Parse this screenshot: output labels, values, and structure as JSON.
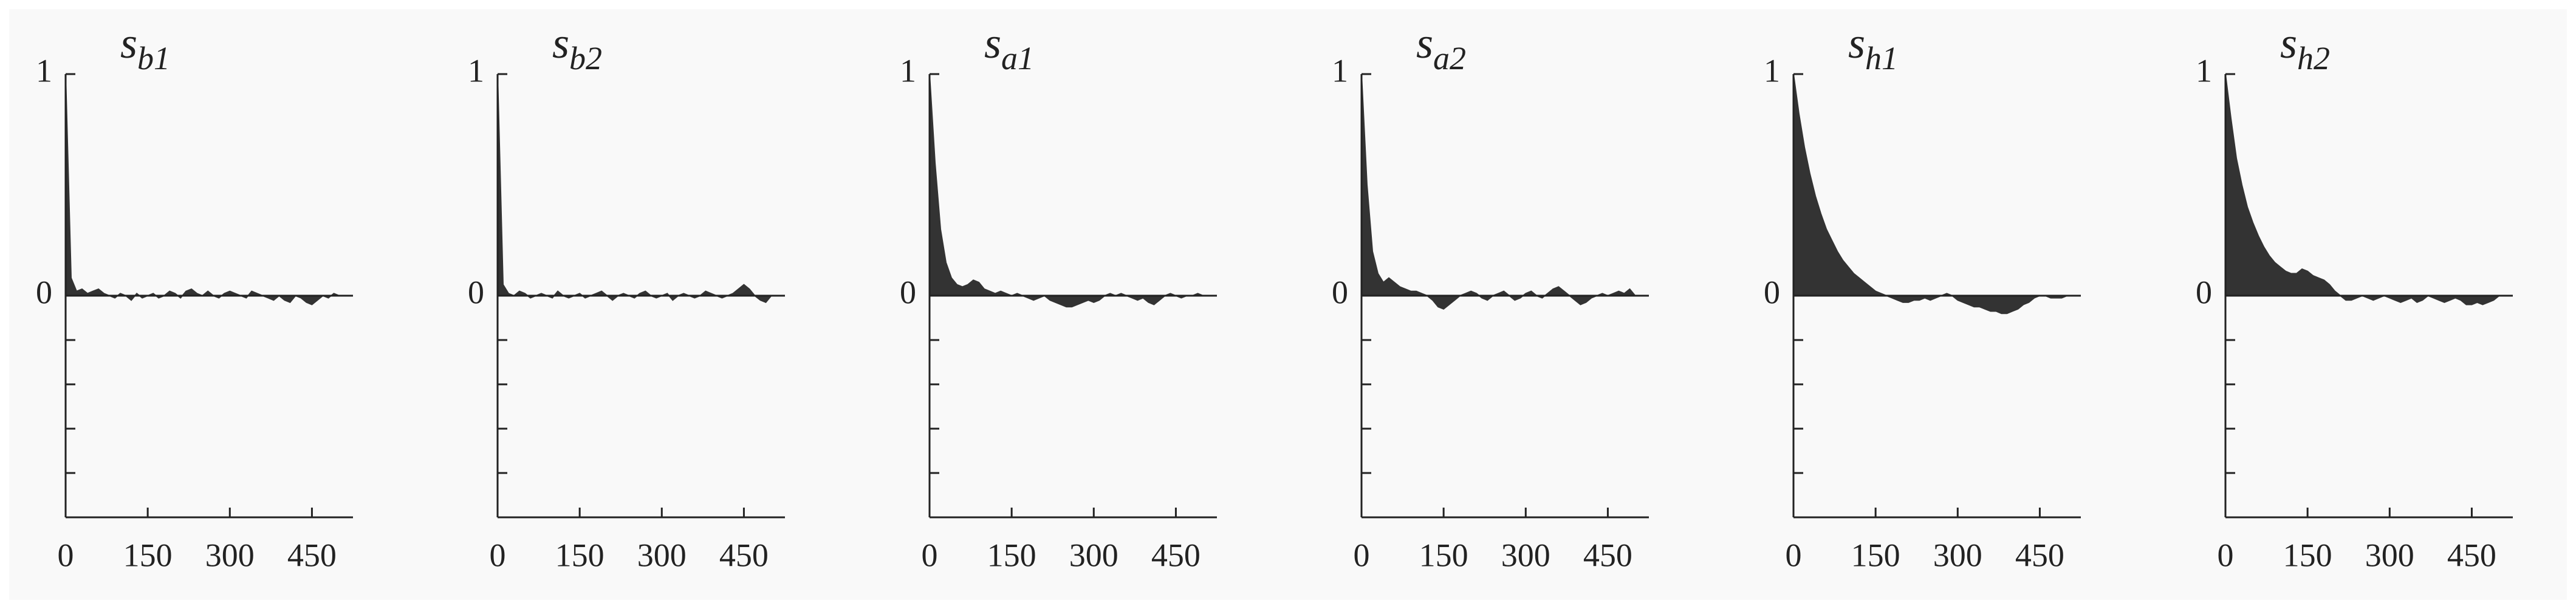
{
  "chart_data": [
    {
      "type": "area",
      "title": "s",
      "title_sub": "b1",
      "color": "#333333",
      "x": [
        0,
        10,
        20,
        30,
        40,
        50,
        60,
        70,
        80,
        90,
        100,
        110,
        120,
        130,
        140,
        150,
        160,
        170,
        180,
        190,
        200,
        210,
        220,
        230,
        240,
        250,
        260,
        270,
        280,
        290,
        300,
        310,
        320,
        330,
        340,
        350,
        360,
        370,
        380,
        390,
        400,
        410,
        420,
        430,
        440,
        450,
        460,
        470,
        480,
        490,
        500
      ],
      "values": [
        1,
        0.08,
        0.02,
        0.03,
        0.01,
        0.02,
        0.03,
        0.01,
        0.0,
        -0.01,
        0.01,
        0.0,
        -0.02,
        0.01,
        -0.01,
        0.0,
        0.01,
        -0.01,
        0.0,
        0.02,
        0.01,
        -0.01,
        0.02,
        0.03,
        0.01,
        0.0,
        0.02,
        0.0,
        -0.01,
        0.01,
        0.02,
        0.01,
        0.0,
        -0.01,
        0.02,
        0.01,
        0.0,
        -0.01,
        -0.02,
        0.0,
        -0.02,
        -0.03,
        0.0,
        -0.01,
        -0.03,
        -0.04,
        -0.02,
        0.0,
        -0.01,
        0.01,
        0.0
      ],
      "xlim": [
        0,
        525
      ],
      "xticks": [
        0,
        150,
        300,
        450
      ],
      "ylim": [
        -1,
        1
      ],
      "yticks": [
        0,
        1
      ],
      "yminorticks": [
        -0.2,
        -0.4,
        -0.6,
        -0.8,
        -1
      ]
    },
    {
      "type": "area",
      "title": "s",
      "title_sub": "b2",
      "color": "#333333",
      "x": [
        0,
        10,
        20,
        30,
        40,
        50,
        60,
        70,
        80,
        90,
        100,
        110,
        120,
        130,
        140,
        150,
        160,
        170,
        180,
        190,
        200,
        210,
        220,
        230,
        240,
        250,
        260,
        270,
        280,
        290,
        300,
        310,
        320,
        330,
        340,
        350,
        360,
        370,
        380,
        390,
        400,
        410,
        420,
        430,
        440,
        450,
        460,
        470,
        480,
        490,
        500
      ],
      "values": [
        1,
        0.05,
        0.01,
        0.0,
        0.02,
        0.01,
        -0.01,
        0.0,
        0.01,
        0.0,
        -0.01,
        0.02,
        0.0,
        -0.01,
        0.0,
        0.01,
        -0.01,
        0.0,
        0.01,
        0.02,
        0.0,
        -0.02,
        0.0,
        0.01,
        0.0,
        -0.01,
        0.01,
        0.02,
        0.0,
        -0.01,
        0.0,
        0.01,
        -0.02,
        0.0,
        0.01,
        0.0,
        -0.01,
        0.0,
        0.02,
        0.01,
        0.0,
        -0.01,
        0.0,
        0.01,
        0.03,
        0.05,
        0.03,
        0.0,
        -0.02,
        -0.03,
        0.0
      ],
      "xlim": [
        0,
        525
      ],
      "xticks": [
        0,
        150,
        300,
        450
      ],
      "ylim": [
        -1,
        1
      ],
      "yticks": [
        0,
        1
      ],
      "yminorticks": [
        -0.2,
        -0.4,
        -0.6,
        -0.8,
        -1
      ]
    },
    {
      "type": "area",
      "title": "s",
      "title_sub": "a1",
      "color": "#333333",
      "x": [
        0,
        10,
        20,
        30,
        40,
        50,
        60,
        70,
        80,
        90,
        100,
        110,
        120,
        130,
        140,
        150,
        160,
        170,
        180,
        190,
        200,
        210,
        220,
        230,
        240,
        250,
        260,
        270,
        280,
        290,
        300,
        310,
        320,
        330,
        340,
        350,
        360,
        370,
        380,
        390,
        400,
        410,
        420,
        430,
        440,
        450,
        460,
        470,
        480,
        490,
        500
      ],
      "values": [
        1,
        0.6,
        0.3,
        0.15,
        0.08,
        0.05,
        0.04,
        0.05,
        0.07,
        0.06,
        0.03,
        0.02,
        0.01,
        0.02,
        0.01,
        0.0,
        0.01,
        0.0,
        -0.01,
        -0.02,
        -0.01,
        0.0,
        -0.02,
        -0.03,
        -0.04,
        -0.05,
        -0.05,
        -0.04,
        -0.03,
        -0.02,
        -0.03,
        -0.02,
        0.0,
        0.01,
        0.0,
        0.01,
        0.0,
        -0.01,
        -0.02,
        -0.01,
        -0.03,
        -0.04,
        -0.02,
        0.0,
        0.01,
        0.0,
        -0.01,
        0.0,
        0.0,
        0.01,
        0.0
      ],
      "xlim": [
        0,
        525
      ],
      "xticks": [
        0,
        150,
        300,
        450
      ],
      "ylim": [
        -1,
        1
      ],
      "yticks": [
        0,
        1
      ],
      "yminorticks": [
        -0.2,
        -0.4,
        -0.6,
        -0.8,
        -1
      ]
    },
    {
      "type": "area",
      "title": "s",
      "title_sub": "a2",
      "color": "#333333",
      "x": [
        0,
        10,
        20,
        30,
        40,
        50,
        60,
        70,
        80,
        90,
        100,
        110,
        120,
        130,
        140,
        150,
        160,
        170,
        180,
        190,
        200,
        210,
        220,
        230,
        240,
        250,
        260,
        270,
        280,
        290,
        300,
        310,
        320,
        330,
        340,
        350,
        360,
        370,
        380,
        390,
        400,
        410,
        420,
        430,
        440,
        450,
        460,
        470,
        480,
        490,
        500
      ],
      "values": [
        1,
        0.5,
        0.2,
        0.1,
        0.06,
        0.08,
        0.06,
        0.04,
        0.03,
        0.02,
        0.02,
        0.01,
        0.0,
        -0.02,
        -0.05,
        -0.06,
        -0.04,
        -0.02,
        0.0,
        0.01,
        0.02,
        0.01,
        -0.01,
        -0.02,
        0.0,
        0.01,
        0.02,
        0.0,
        -0.02,
        -0.01,
        0.01,
        0.02,
        0.0,
        -0.01,
        0.01,
        0.03,
        0.04,
        0.02,
        0.0,
        -0.02,
        -0.04,
        -0.03,
        -0.01,
        0.0,
        0.01,
        0.0,
        0.01,
        0.02,
        0.01,
        0.03,
        0.0
      ],
      "xlim": [
        0,
        525
      ],
      "xticks": [
        0,
        150,
        300,
        450
      ],
      "ylim": [
        -1,
        1
      ],
      "yticks": [
        0,
        1
      ],
      "yminorticks": [
        -0.2,
        -0.4,
        -0.6,
        -0.8,
        -1
      ]
    },
    {
      "type": "area",
      "title": "s",
      "title_sub": "h1",
      "color": "#333333",
      "x": [
        0,
        10,
        20,
        30,
        40,
        50,
        60,
        70,
        80,
        90,
        100,
        110,
        120,
        130,
        140,
        150,
        160,
        170,
        180,
        190,
        200,
        210,
        220,
        230,
        240,
        250,
        260,
        270,
        280,
        290,
        300,
        310,
        320,
        330,
        340,
        350,
        360,
        370,
        380,
        390,
        400,
        410,
        420,
        430,
        440,
        450,
        460,
        470,
        480,
        490,
        500
      ],
      "values": [
        1,
        0.82,
        0.67,
        0.55,
        0.45,
        0.37,
        0.3,
        0.25,
        0.2,
        0.16,
        0.13,
        0.1,
        0.08,
        0.06,
        0.04,
        0.02,
        0.01,
        0.0,
        -0.01,
        -0.02,
        -0.03,
        -0.03,
        -0.02,
        -0.02,
        -0.01,
        -0.02,
        -0.01,
        0.0,
        0.01,
        0.0,
        -0.02,
        -0.03,
        -0.04,
        -0.05,
        -0.05,
        -0.06,
        -0.07,
        -0.07,
        -0.08,
        -0.08,
        -0.07,
        -0.06,
        -0.04,
        -0.03,
        -0.01,
        0.0,
        0.0,
        -0.01,
        -0.01,
        -0.01,
        0.0
      ],
      "xlim": [
        0,
        525
      ],
      "xticks": [
        0,
        150,
        300,
        450
      ],
      "ylim": [
        -1,
        1
      ],
      "yticks": [
        0,
        1
      ],
      "yminorticks": [
        -0.2,
        -0.4,
        -0.6,
        -0.8,
        -1
      ]
    },
    {
      "type": "area",
      "title": "s",
      "title_sub": "h2",
      "color": "#333333",
      "x": [
        0,
        10,
        20,
        30,
        40,
        50,
        60,
        70,
        80,
        90,
        100,
        110,
        120,
        130,
        140,
        150,
        160,
        170,
        180,
        190,
        200,
        210,
        220,
        230,
        240,
        250,
        260,
        270,
        280,
        290,
        300,
        310,
        320,
        330,
        340,
        350,
        360,
        370,
        380,
        390,
        400,
        410,
        420,
        430,
        440,
        450,
        460,
        470,
        480,
        490,
        500
      ],
      "values": [
        1,
        0.8,
        0.62,
        0.5,
        0.4,
        0.33,
        0.27,
        0.22,
        0.18,
        0.15,
        0.13,
        0.11,
        0.1,
        0.1,
        0.12,
        0.11,
        0.09,
        0.08,
        0.07,
        0.05,
        0.02,
        0.0,
        -0.02,
        -0.02,
        -0.01,
        0.0,
        -0.01,
        -0.02,
        -0.01,
        0.0,
        -0.01,
        -0.02,
        -0.03,
        -0.02,
        -0.01,
        -0.03,
        -0.02,
        0.0,
        -0.01,
        -0.02,
        -0.03,
        -0.02,
        -0.01,
        -0.02,
        -0.04,
        -0.04,
        -0.03,
        -0.04,
        -0.03,
        -0.02,
        0.0
      ],
      "xlim": [
        0,
        525
      ],
      "xticks": [
        0,
        150,
        300,
        450
      ],
      "ylim": [
        -1,
        1
      ],
      "yticks": [
        0,
        1
      ],
      "yminorticks": [
        -0.2,
        -0.4,
        -0.6,
        -0.8,
        -1
      ]
    }
  ]
}
